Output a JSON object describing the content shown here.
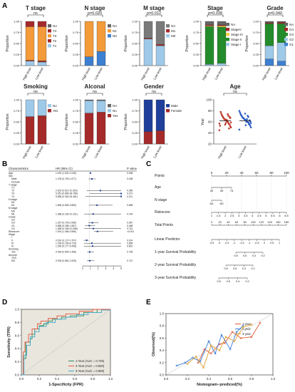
{
  "panel_labels": [
    "A",
    "B",
    "C",
    "D",
    "E"
  ],
  "chart_data": [
    {
      "type": "bar",
      "stacked": true,
      "title": "T stage",
      "pvalue": "ns",
      "ylabel": "Proportion",
      "categories": [
        "High level",
        "Low level"
      ],
      "series": [
        {
          "name": "T1",
          "values": [
            0.1,
            0.08
          ]
        },
        {
          "name": "T2",
          "values": [
            0.02,
            0.03
          ]
        },
        {
          "name": "T3",
          "values": [
            0.76,
            0.77
          ]
        },
        {
          "name": "T4",
          "values": [
            0.12,
            0.12
          ]
        },
        {
          "name": "NA",
          "values": [
            0.0,
            0.0
          ]
        }
      ],
      "colors": [
        "#9ec9e8",
        "#a52a2a",
        "#f39a3a",
        "#a52a2a",
        "#666666"
      ],
      "legend": [
        "NA",
        "T4",
        "T3",
        "T2",
        "T1"
      ],
      "ylim": [
        0,
        1
      ],
      "yticks": [
        "0.00",
        "0.25",
        "0.50",
        "0.75",
        "1.00"
      ]
    },
    {
      "type": "bar",
      "stacked": true,
      "title": "N stage",
      "pvalue": "p=0.020",
      "ylabel": "Proportion",
      "categories": [
        "High level",
        "Low level"
      ],
      "series": [
        {
          "name": "N0",
          "values": [
            0.2,
            0.32
          ]
        },
        {
          "name": "N1",
          "values": [
            0.8,
            0.68
          ]
        },
        {
          "name": "NA",
          "values": [
            0.0,
            0.0
          ]
        }
      ],
      "colors": [
        "#3d7fd0",
        "#f39a3a",
        "#666666"
      ],
      "legend": [
        "NA",
        "N1",
        "N0"
      ],
      "ylim": [
        0,
        1
      ],
      "yticks": [
        "0.00",
        "0.25",
        "0.50",
        "0.75",
        "1.00"
      ]
    },
    {
      "type": "bar",
      "stacked": true,
      "title": "M stage",
      "pvalue": "p=0.012",
      "ylabel": "Proportion",
      "categories": [
        "High level",
        "Low level"
      ],
      "series": [
        {
          "name": "M0",
          "values": [
            0.6,
            0.45
          ]
        },
        {
          "name": "M1",
          "values": [
            0.02,
            0.03
          ]
        },
        {
          "name": "NA",
          "values": [
            0.38,
            0.52
          ]
        }
      ],
      "colors": [
        "#9ec9e8",
        "#a52a2a",
        "#7a7a7a"
      ],
      "legend": [
        "NA",
        "M1",
        "M0"
      ],
      "ylim": [
        0,
        1
      ],
      "yticks": [
        "0.00",
        "0.25",
        "0.50",
        "0.75",
        "1.00"
      ]
    },
    {
      "type": "bar",
      "stacked": true,
      "title": "Stage",
      "pvalue": "p=0.038",
      "ylabel": "Proportion",
      "categories": [
        "High level",
        "Low level"
      ],
      "series": [
        {
          "name": "Stage I",
          "values": [
            0.03,
            0.05
          ]
        },
        {
          "name": "Stage II",
          "values": [
            0.85,
            0.82
          ]
        },
        {
          "name": "Stage III",
          "values": [
            0.02,
            0.03
          ]
        },
        {
          "name": "StageV",
          "values": [
            0.02,
            0.02
          ]
        },
        {
          "name": "NA",
          "values": [
            0.08,
            0.08
          ]
        }
      ],
      "colors": [
        "#9ec9e8",
        "#238b2a",
        "#f5d04a",
        "#a52a2a",
        "#666666"
      ],
      "legend": [
        "NA",
        "StageV",
        "Stage III",
        "Stage II",
        "Stage I"
      ],
      "ylim": [
        0,
        1
      ],
      "yticks": [
        "0.00",
        "0.25",
        "0.50",
        "0.75",
        "1.00"
      ]
    },
    {
      "type": "bar",
      "stacked": true,
      "title": "Grade",
      "pvalue": "p=0.040",
      "ylabel": "Proportion",
      "categories": [
        "High level",
        "Low level"
      ],
      "series": [
        {
          "name": "G1",
          "values": [
            0.15,
            0.1
          ]
        },
        {
          "name": "G2",
          "values": [
            0.3,
            0.42
          ]
        },
        {
          "name": "G3",
          "values": [
            0.5,
            0.43
          ]
        },
        {
          "name": "G4",
          "values": [
            0.02,
            0.03
          ]
        },
        {
          "name": "NA",
          "values": [
            0.03,
            0.02
          ]
        }
      ],
      "colors": [
        "#3d7fd0",
        "#9ec9e8",
        "#238b2a",
        "#a52a2a",
        "#666666"
      ],
      "legend": [
        "NA",
        "G4",
        "G3",
        "G2",
        "G1"
      ],
      "ylim": [
        0,
        1
      ],
      "yticks": [
        "0.00",
        "0.25",
        "0.50",
        "0.75",
        "1.00"
      ]
    },
    {
      "type": "bar",
      "stacked": true,
      "title": "Smoking",
      "pvalue": "ns",
      "ylabel": "Proportion",
      "categories": [
        "High level",
        "Low level"
      ],
      "series": [
        {
          "name": "Yes",
          "values": [
            0.62,
            0.64
          ]
        },
        {
          "name": "No",
          "values": [
            0.38,
            0.36
          ]
        }
      ],
      "colors": [
        "#a52a2a",
        "#9ec9e8"
      ],
      "legend": [
        "No",
        "Yes"
      ],
      "ylim": [
        0,
        1
      ],
      "yticks": [
        "0.00",
        "0.25",
        "0.50",
        "0.75",
        "1.00"
      ]
    },
    {
      "type": "bar",
      "stacked": true,
      "title": "Alconal",
      "pvalue": "ns",
      "ylabel": "Proportion",
      "categories": [
        "High level",
        "Low level"
      ],
      "series": [
        {
          "name": "Yes",
          "values": [
            0.7,
            0.72
          ]
        },
        {
          "name": "No",
          "values": [
            0.28,
            0.26
          ]
        },
        {
          "name": "NA",
          "values": [
            0.02,
            0.02
          ]
        }
      ],
      "colors": [
        "#a52a2a",
        "#9ec9e8",
        "#666666"
      ],
      "legend": [
        "NA",
        "No",
        "Yes"
      ],
      "ylim": [
        0,
        1
      ],
      "yticks": [
        "0.00",
        "0.25",
        "0.50",
        "0.75",
        "1.00"
      ]
    },
    {
      "type": "bar",
      "stacked": true,
      "title": "Gender",
      "pvalue": "ns",
      "ylabel": "Proportion",
      "categories": [
        "High level",
        "Low level"
      ],
      "series": [
        {
          "name": "Female",
          "values": [
            0.28,
            0.3
          ]
        },
        {
          "name": "Male",
          "values": [
            0.72,
            0.7
          ]
        }
      ],
      "colors": [
        "#a52a2a",
        "#1f3f9a"
      ],
      "legend": [
        "Male",
        "Female"
      ],
      "ylim": [
        0,
        1
      ],
      "yticks": [
        "0.00",
        "0.25",
        "0.50",
        "0.75",
        "1.00"
      ]
    },
    {
      "type": "scatter",
      "title": "Age",
      "pvalue": "ns",
      "ylabel": "Year",
      "categories": [
        "High level",
        "Low level"
      ],
      "ylim": [
        20,
        100
      ],
      "yticks": [
        "20",
        "40",
        "60",
        "80",
        "100"
      ],
      "groups": [
        {
          "name": "High level",
          "color": "#c0392b",
          "values": [
            45,
            50,
            52,
            55,
            56,
            58,
            60,
            61,
            62,
            63,
            64,
            65,
            66,
            68,
            70,
            72,
            75,
            78,
            53,
            57,
            59,
            67,
            69,
            48,
            71,
            74,
            62,
            64,
            58,
            55
          ]
        },
        {
          "name": "Low level",
          "color": "#2f5fc4",
          "values": [
            46,
            50,
            53,
            55,
            57,
            59,
            60,
            61,
            62,
            63,
            64,
            65,
            66,
            67,
            68,
            70,
            72,
            74,
            77,
            80,
            58,
            61,
            63,
            56,
            69,
            71,
            65,
            60,
            54,
            75
          ]
        }
      ]
    },
    {
      "type": "table",
      "title": "Forest plot",
      "headers": [
        "Characteristics",
        "HR (95% CI)",
        "P value"
      ],
      "rows": [
        [
          "Age",
          "1.022 (1.002-1.045)",
          "0.038"
        ],
        [
          "Sex",
          "",
          ""
        ],
        [
          "Male",
          "1.193 (0.763-1.677)",
          "0.438"
        ],
        [
          "Female",
          "",
          ""
        ],
        [
          "T stage",
          "",
          ""
        ],
        [
          "T1",
          "",
          ""
        ],
        [
          "T2",
          "2.302 (0.510-10.392)",
          "0.289"
        ],
        [
          "T3",
          "5.051 (0.896-28.768)",
          "0.071"
        ],
        [
          "T4",
          "5.855 (0.363-94.481)",
          "0.211"
        ],
        [
          "N stage",
          "",
          ""
        ],
        [
          "N0",
          "",
          ""
        ],
        [
          "N1",
          "1.856 (0.809-3.883)",
          "0.658"
        ],
        [
          "M stage",
          "",
          ""
        ],
        [
          "M0",
          "",
          ""
        ],
        [
          "M1",
          "1.368 (0.183-10.121)",
          "0.764"
        ],
        [
          "Grade",
          "",
          ""
        ],
        [
          "G2",
          "",
          ""
        ],
        [
          "G3",
          "1.257 (0.703-2.065)",
          "0.367"
        ],
        [
          "G1",
          "0.858 (0.288-1.587)",
          "0.468"
        ],
        [
          "G4",
          "1.385 (0.185-10.368)",
          "0.751"
        ],
        [
          "Riskscore",
          "1.924 (1.466-3.956)",
          "<0.001"
        ],
        [
          "Stage",
          "",
          ""
        ],
        [
          "I",
          "",
          ""
        ],
        [
          "II",
          "0.519 (0.127-0.797)",
          "0.014"
        ],
        [
          "III",
          "1.199 (0.165-8.719)",
          "0.859"
        ],
        [
          "IV",
          "1.290 (0.177-9.408)",
          "0.801"
        ],
        [
          "Smoking",
          "",
          ""
        ],
        [
          "Yes",
          "0.918 (0.590-1.466)",
          "0.735"
        ],
        [
          "Alconal",
          "",
          ""
        ],
        [
          "YES",
          "",
          ""
        ],
        [
          "NO",
          "0.918 (0.562-1.525)",
          "0.721"
        ]
      ],
      "xticks": [
        "0",
        "1",
        "2",
        "3",
        "4",
        "5"
      ]
    },
    {
      "type": "nomogram",
      "rows": [
        "Points",
        "Age",
        "N stage",
        "Riskscore",
        "Total Points",
        "Linear Predictor",
        "1-year Survival Probability",
        "2-year Survival Probability",
        "3-year Survival Probability"
      ],
      "points_ticks": [
        "0",
        "20",
        "40",
        "60",
        "80",
        "100"
      ],
      "age_ticks": [
        "30",
        "35",
        "75"
      ],
      "nstage_ticks": [
        "N1",
        "N0"
      ],
      "riskscore_ticks": [
        "1",
        "1.5",
        "2",
        "2.5",
        "3",
        "3.5",
        "4",
        "4.5",
        "5",
        "5.5",
        "6",
        "6.5"
      ],
      "total_ticks": [
        "0",
        "20",
        "40",
        "60",
        "80",
        "100",
        "120",
        "140",
        "160",
        "180"
      ],
      "lp_ticks": [
        "-3.5",
        "-3",
        "-2.5",
        "-2",
        "-1.5",
        "-1",
        "-0.5",
        "0",
        "0.5",
        "1"
      ],
      "y1_ticks": [
        "0.8",
        "0.6",
        "0.4",
        "0.2"
      ],
      "y2_ticks": [
        "0.8",
        "0.6",
        "0.4",
        "0.2"
      ],
      "y3_ticks": [
        "0.8",
        "0.6",
        "0.4",
        "0.2"
      ]
    },
    {
      "type": "line",
      "title": "ROC",
      "xlabel": "1-Specificity (FPR)",
      "ylabel": "Sensitivity (TPR)",
      "xlim": [
        0,
        1
      ],
      "ylim": [
        0,
        1
      ],
      "xticks": [
        "0.0",
        "0.2",
        "0.4",
        "0.6",
        "0.8",
        "1.0"
      ],
      "yticks": [
        "0.0",
        "0.2",
        "0.4",
        "0.6",
        "0.8",
        "1.0"
      ],
      "series": [
        {
          "name": "1-Year (AUC = 0.745)",
          "color": "#2e8b57",
          "x": [
            0,
            0.02,
            0.05,
            0.05,
            0.1,
            0.12,
            0.15,
            0.2,
            0.25,
            0.3,
            0.35,
            0.45,
            0.55,
            0.7,
            0.85,
            1
          ],
          "y": [
            0,
            0.25,
            0.35,
            0.5,
            0.55,
            0.62,
            0.7,
            0.75,
            0.78,
            0.82,
            0.85,
            0.88,
            0.9,
            0.95,
            1,
            1
          ]
        },
        {
          "name": "2-Year (AUC = 0.830)",
          "color": "#e6553a",
          "x": [
            0,
            0.02,
            0.04,
            0.08,
            0.12,
            0.18,
            0.22,
            0.3,
            0.4,
            0.5,
            0.65,
            0.8,
            1
          ],
          "y": [
            0,
            0.35,
            0.5,
            0.62,
            0.7,
            0.78,
            0.82,
            0.86,
            0.9,
            0.93,
            0.97,
            1,
            1
          ]
        },
        {
          "name": "3-Year (AUC = 0.806)",
          "color": "#3fa9c9",
          "x": [
            0,
            0.03,
            0.06,
            0.1,
            0.15,
            0.2,
            0.28,
            0.38,
            0.5,
            0.62,
            0.75,
            0.9,
            1
          ],
          "y": [
            0,
            0.3,
            0.45,
            0.58,
            0.66,
            0.74,
            0.8,
            0.85,
            0.88,
            0.92,
            0.95,
            0.99,
            1
          ]
        }
      ]
    },
    {
      "type": "line",
      "title": "Calibration",
      "xlabel": "Nomogram−prediced(%)",
      "ylabel": "Observed(%)",
      "xlim": [
        0,
        1
      ],
      "ylim": [
        0,
        1
      ],
      "xticks": [
        "0.0",
        "0.2",
        "0.4",
        "0.6",
        "0.8",
        "1.0"
      ],
      "yticks": [
        "0.0",
        "0.2",
        "0.4",
        "0.6",
        "0.8",
        "1.0"
      ],
      "series": [
        {
          "name": "1-year",
          "color": "#e05a3a",
          "x": [
            0.3,
            0.36,
            0.42,
            0.5,
            0.55,
            0.62,
            0.7,
            0.8,
            0.88
          ],
          "y": [
            0.2,
            0.42,
            0.35,
            0.5,
            0.52,
            0.7,
            0.6,
            0.62,
            0.85
          ]
        },
        {
          "name": "2-year",
          "color": "#3a7bd5",
          "x": [
            0.1,
            0.18,
            0.25,
            0.32,
            0.4,
            0.46,
            0.52,
            0.6,
            0.66,
            0.72
          ],
          "y": [
            0.15,
            0.2,
            0.28,
            0.22,
            0.55,
            0.35,
            0.65,
            0.42,
            0.7,
            0.8
          ]
        },
        {
          "name": "3-year",
          "color": "#e0a030",
          "x": [
            0.2,
            0.28,
            0.35,
            0.42,
            0.5,
            0.56,
            0.64,
            0.72,
            0.8
          ],
          "y": [
            0.18,
            0.3,
            0.12,
            0.48,
            0.4,
            0.62,
            0.55,
            0.78,
            0.82
          ]
        }
      ]
    }
  ]
}
